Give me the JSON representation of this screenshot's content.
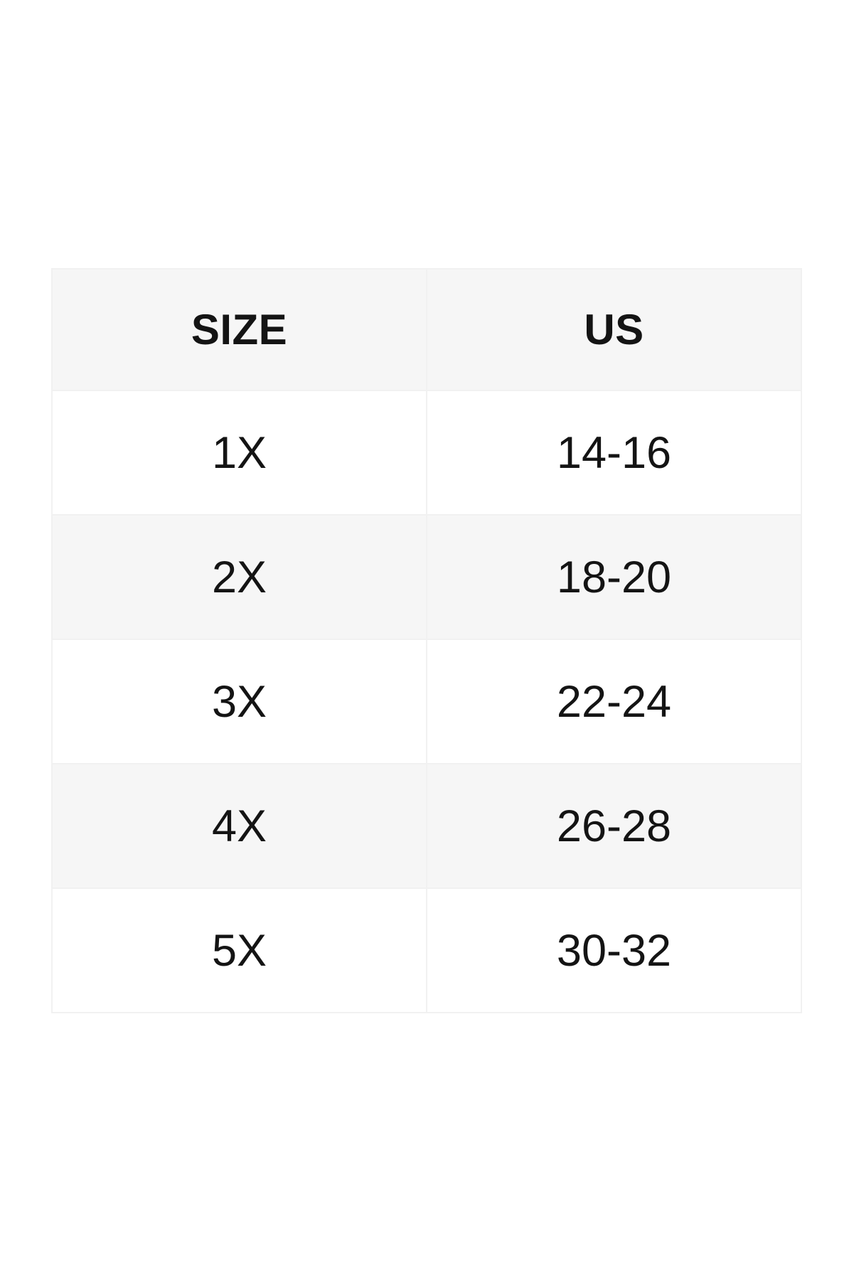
{
  "page": {
    "background": "#ffffff"
  },
  "size_chart": {
    "columns": [
      {
        "key": "size",
        "label": "SIZE"
      },
      {
        "key": "us",
        "label": "US"
      }
    ],
    "rows": [
      {
        "size": "1X",
        "us": "14-16"
      },
      {
        "size": "2X",
        "us": "18-20"
      },
      {
        "size": "3X",
        "us": "22-24"
      },
      {
        "size": "4X",
        "us": "26-28"
      },
      {
        "size": "5X",
        "us": "30-32"
      }
    ],
    "colors": {
      "header_bg": "#f6f6f6",
      "alt_row_bg": "#f6f6f6",
      "row_bg": "#ffffff",
      "border": "#f1f1f1",
      "text": "#141414"
    }
  },
  "chart_data": {
    "type": "table",
    "title": "",
    "columns": [
      "SIZE",
      "US"
    ],
    "rows": [
      [
        "1X",
        "14-16"
      ],
      [
        "2X",
        "18-20"
      ],
      [
        "3X",
        "22-24"
      ],
      [
        "4X",
        "26-28"
      ],
      [
        "5X",
        "30-32"
      ]
    ]
  }
}
